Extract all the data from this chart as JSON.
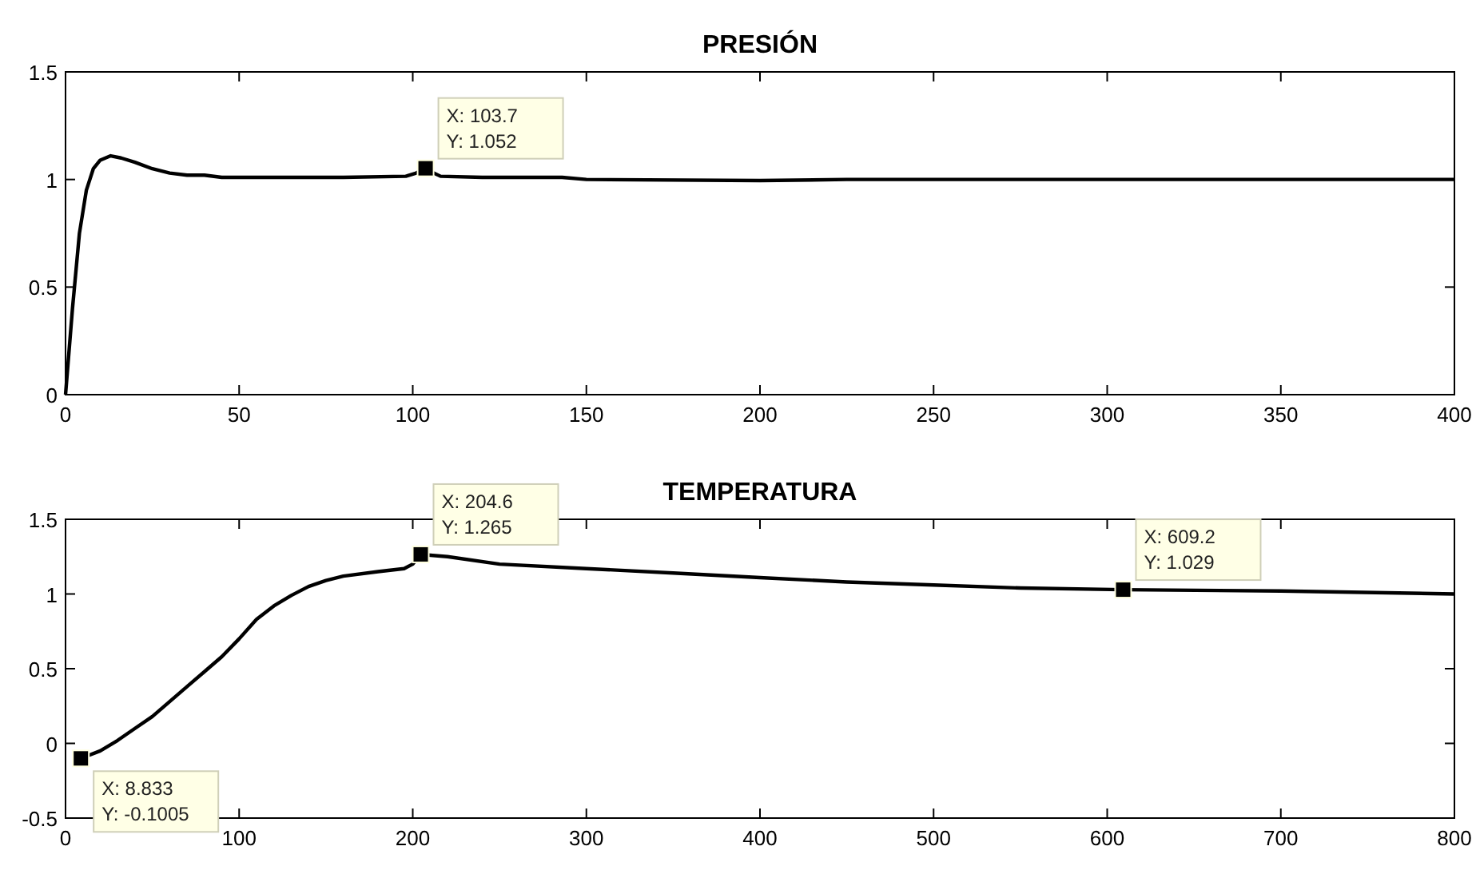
{
  "chart_data": [
    {
      "type": "line",
      "title": "PRESIÓN",
      "xlim": [
        0,
        400
      ],
      "xticks": [
        0,
        50,
        100,
        150,
        200,
        250,
        300,
        350,
        400
      ],
      "ylim": [
        0,
        1.5
      ],
      "yticks": [
        0,
        0.5,
        1,
        1.5
      ],
      "grid": false,
      "marker": "none",
      "line_style": "solid",
      "x": [
        0,
        2,
        4,
        6,
        8,
        10,
        13,
        16,
        20,
        25,
        30,
        35,
        40,
        45,
        60,
        80,
        98,
        101,
        103.7,
        106,
        108,
        120,
        143,
        150,
        200,
        225,
        250,
        300,
        350,
        400
      ],
      "series": [
        {
          "color": "#000000",
          "values": [
            0,
            0.4,
            0.75,
            0.95,
            1.05,
            1.09,
            1.11,
            1.1,
            1.08,
            1.05,
            1.03,
            1.02,
            1.02,
            1.01,
            1.01,
            1.01,
            1.015,
            1.03,
            1.052,
            1.03,
            1.015,
            1.01,
            1.01,
            1.0,
            0.995,
            1.0,
            1.0,
            1.0,
            1.0,
            1.0
          ]
        }
      ],
      "annotations": [
        {
          "text": "X: 103.7\nY: 1.052",
          "x": 103.7,
          "y": 1.052
        }
      ]
    },
    {
      "type": "line",
      "title": "TEMPERATURA",
      "xlim": [
        0,
        800
      ],
      "xticks": [
        0,
        100,
        200,
        300,
        400,
        500,
        600,
        700,
        800
      ],
      "ylim": [
        -0.5,
        1.5
      ],
      "yticks": [
        -0.5,
        0,
        0.5,
        1,
        1.5
      ],
      "grid": false,
      "marker": "none",
      "line_style": "solid",
      "x": [
        8.833,
        20,
        30,
        40,
        50,
        60,
        70,
        80,
        90,
        100,
        110,
        120,
        130,
        140,
        150,
        160,
        180,
        195,
        200,
        204.6,
        220,
        250,
        300,
        350,
        400,
        450,
        500,
        550,
        609.2,
        700,
        800
      ],
      "series": [
        {
          "color": "#000000",
          "values": [
            -0.1005,
            -0.05,
            0.02,
            0.1,
            0.18,
            0.28,
            0.38,
            0.48,
            0.58,
            0.7,
            0.83,
            0.92,
            0.99,
            1.05,
            1.09,
            1.12,
            1.15,
            1.17,
            1.2,
            1.265,
            1.25,
            1.2,
            1.17,
            1.14,
            1.11,
            1.08,
            1.06,
            1.04,
            1.029,
            1.02,
            1.0
          ]
        }
      ],
      "annotations": [
        {
          "text": "X: 204.6\nY: 1.265",
          "x": 204.6,
          "y": 1.265
        },
        {
          "text": "X: 609.2\nY: 1.029",
          "x": 609.2,
          "y": 1.029
        },
        {
          "text": "X: 8.833\nY: -0.1005",
          "x": 8.833,
          "y": -0.1005
        }
      ]
    }
  ]
}
